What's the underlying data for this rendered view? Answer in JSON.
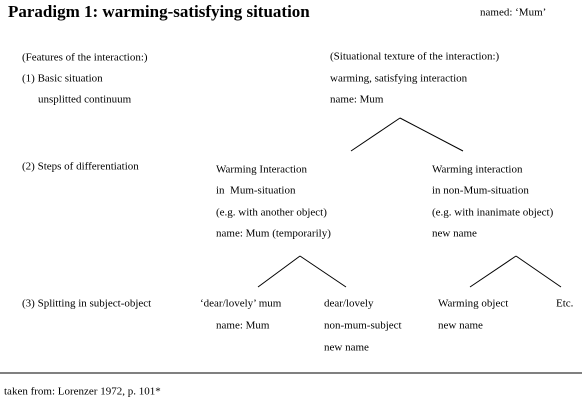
{
  "header": {
    "title": "Paradigm 1: warming-satisfying situation",
    "named": "named: ‘Mum’"
  },
  "levels": [
    {
      "label": "(Features of the interaction:)"
    },
    {
      "label": "(1) Basic situation",
      "sub": "unsplitted continuum"
    },
    {
      "label": "(2) Steps of differentiation"
    },
    {
      "label": "(3) Splitting in subject-object"
    }
  ],
  "nodes": [
    {
      "lines": [
        "(Situational texture of the interaction:)",
        "warming, satisfying interaction",
        "name: Mum"
      ]
    },
    {
      "lines": [
        "Warming Interaction",
        "in  Mum-situation",
        "(e.g. with another object)",
        "name: Mum (temporarily)"
      ]
    },
    {
      "lines": [
        "Warming interaction",
        "in non-Mum-situation",
        "(e.g. with inanimate object)",
        "new name"
      ]
    },
    {
      "lines": [
        "‘dear/lovely’ mum",
        "name: Mum"
      ]
    },
    {
      "lines": [
        "dear/lovely",
        "non-mum-subject",
        "new name"
      ]
    },
    {
      "lines": [
        "Warming object",
        "new name"
      ]
    },
    {
      "lines": [
        "Etc."
      ]
    }
  ],
  "footer": "taken from: Lorenzer 1972, p. 101*"
}
